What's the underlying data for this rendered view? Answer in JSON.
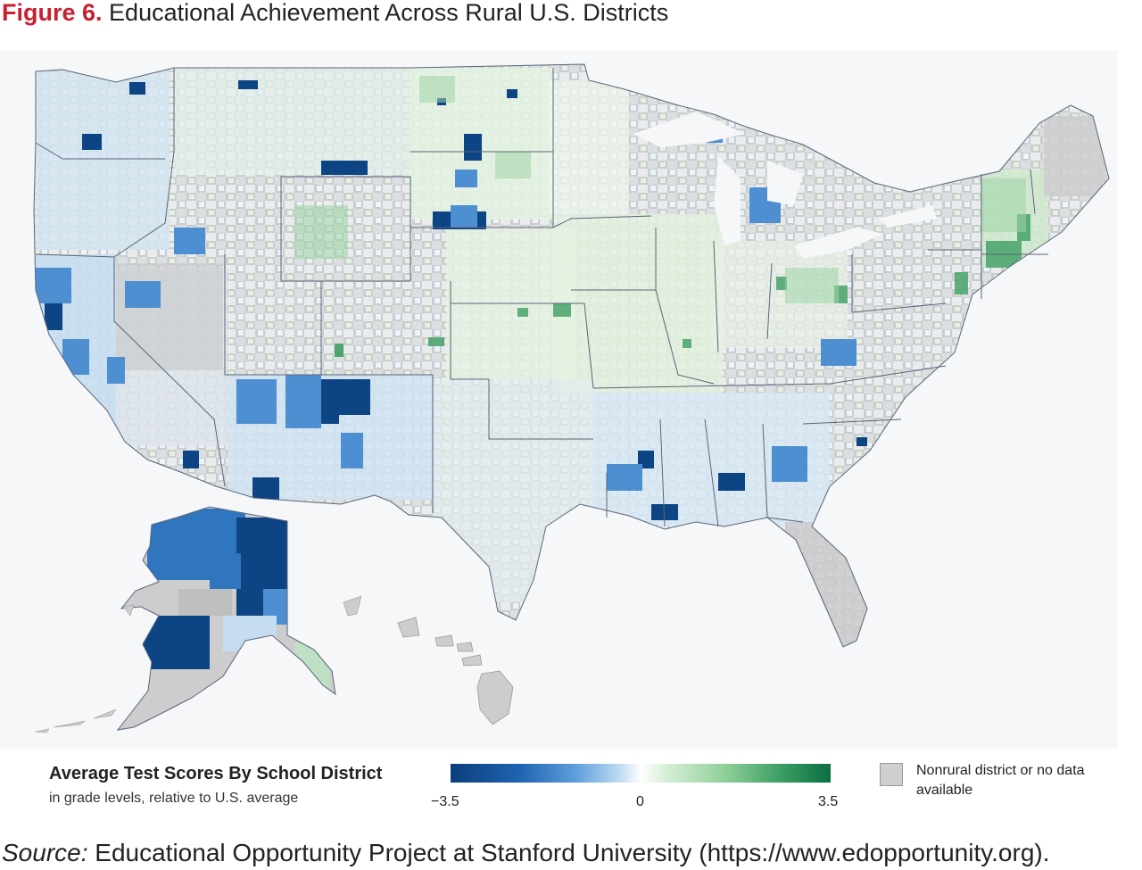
{
  "figure": {
    "number": "Figure 6.",
    "title": "Educational Achievement Across Rural U.S. Districts"
  },
  "legend": {
    "title": "Average Test Scores By School District",
    "subtitle": "in grade levels, relative to U.S. average",
    "scale_min": "−3.5",
    "scale_mid": "0",
    "scale_max": "3.5",
    "nodata_label": "Nonrural district or no data available",
    "colors": {
      "low": "#0b3e7c",
      "mid": "#ffffff",
      "high": "#0a6f43",
      "nodata": "#cfcfcf"
    }
  },
  "source": {
    "label": "Source:",
    "text": "Educational Opportunity Project at Stanford University (https://www.edopportunity.org)."
  }
}
